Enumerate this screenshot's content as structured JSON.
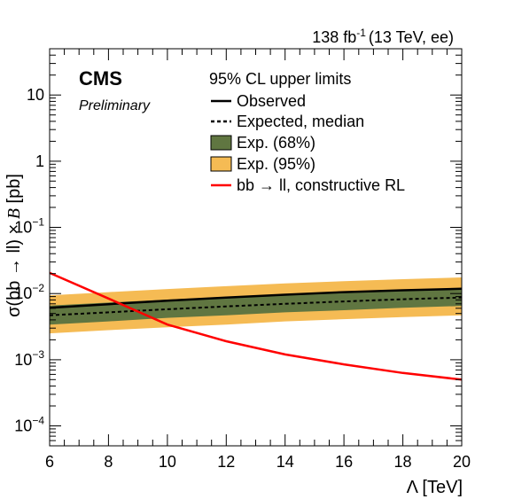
{
  "header": {
    "lumi": "138 fb",
    "lumi_sup": "-1",
    "energy": "(13 TeV, ee)"
  },
  "badge": {
    "experiment": "CMS",
    "status": "Preliminary"
  },
  "colors": {
    "observed": "#000000",
    "expected": "#000000",
    "band68": "#607641",
    "band95": "#F5BB54",
    "theory": "#FF0000"
  },
  "chart_data": {
    "type": "line",
    "title": "",
    "xlabel": "Λ [TeV]",
    "ylabel_prefix": "σ(bb → ll) × ",
    "ylabel_b": "B",
    "ylabel_unit": " [pb]",
    "x_scale": "linear",
    "y_scale": "log",
    "xlim": [
      6,
      20
    ],
    "ylim": [
      5e-05,
      50
    ],
    "x_ticks": [
      "6",
      "8",
      "10",
      "12",
      "14",
      "16",
      "18",
      "20"
    ],
    "y_ticks": [
      {
        "base": "10",
        "exp": "",
        "value": 10
      },
      {
        "base": "1",
        "exp": "",
        "value": 1
      },
      {
        "base": "10",
        "exp": "−1",
        "value": 0.1
      },
      {
        "base": "10",
        "exp": "−2",
        "value": 0.01
      },
      {
        "base": "10",
        "exp": "−3",
        "value": 0.001
      },
      {
        "base": "10",
        "exp": "−4",
        "value": 0.0001
      }
    ],
    "legend_title": "95% CL upper limits",
    "legend_position": "top-right",
    "x": [
      6,
      8,
      10,
      12,
      14,
      16,
      18,
      20
    ],
    "series": [
      {
        "name": "Observed",
        "style": "solid",
        "values": [
          0.0061,
          0.0069,
          0.0078,
          0.0087,
          0.0096,
          0.0105,
          0.0112,
          0.0118
        ]
      },
      {
        "name": "Expected, median",
        "style": "dashed",
        "values": [
          0.0047,
          0.0052,
          0.0058,
          0.0064,
          0.007,
          0.0076,
          0.0082,
          0.0087
        ]
      },
      {
        "name": "Exp. (68%)",
        "style": "band",
        "lower": [
          0.0034,
          0.0038,
          0.0043,
          0.0047,
          0.0052,
          0.0056,
          0.0061,
          0.0065
        ],
        "upper": [
          0.0066,
          0.0073,
          0.0081,
          0.0089,
          0.0098,
          0.0106,
          0.0114,
          0.0121
        ]
      },
      {
        "name": "Exp. (95%)",
        "style": "band",
        "lower": [
          0.0025,
          0.0028,
          0.0031,
          0.0034,
          0.0038,
          0.0041,
          0.0044,
          0.0047
        ],
        "upper": [
          0.0094,
          0.0105,
          0.0117,
          0.0129,
          0.0142,
          0.0154,
          0.0165,
          0.0175
        ]
      },
      {
        "name": "bb → ll, constructive RL",
        "style": "solid-red",
        "values": [
          0.0205,
          0.0084,
          0.0034,
          0.0019,
          0.0012,
          0.00085,
          0.00063,
          0.0005
        ]
      }
    ]
  }
}
